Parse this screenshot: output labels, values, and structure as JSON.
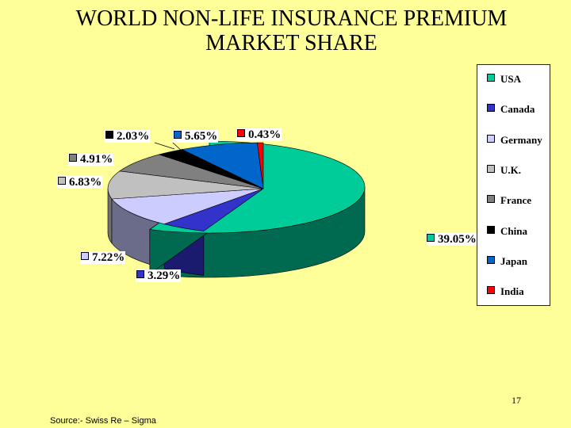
{
  "title_lines": [
    "WORLD NON-LIFE INSURANCE PREMIUM",
    "MARKET SHARE"
  ],
  "chart_data": {
    "type": "pie",
    "style": "3d exploded",
    "legend_position": "right",
    "slices": [
      {
        "name": "USA",
        "value": 39.05,
        "label": "39.05%",
        "color": "#00cc99",
        "side_color": "#006a50"
      },
      {
        "name": "Canada",
        "value": 3.29,
        "label": "3.29%",
        "color": "#3333cc",
        "side_color": "#1a1a6e"
      },
      {
        "name": "Germany",
        "value": 7.22,
        "label": "7.22%",
        "color": "#ccccff",
        "side_color": "#6b6b8a"
      },
      {
        "name": "U.K.",
        "value": 6.83,
        "label": "6.83%",
        "color": "#c0c0c0",
        "side_color": "#707070"
      },
      {
        "name": "France",
        "value": 4.91,
        "label": "4.91%",
        "color": "#808080",
        "side_color": "#454545"
      },
      {
        "name": "China",
        "value": 2.03,
        "label": "2.03%",
        "color": "#000000",
        "side_color": "#000000"
      },
      {
        "name": "Japan",
        "value": 5.65,
        "label": "5.65%",
        "color": "#0066cc",
        "side_color": "#00336b"
      },
      {
        "name": "India",
        "value": 0.43,
        "label": "0.43%",
        "color": "#ff0000",
        "side_color": "#880000"
      }
    ]
  },
  "source": "Source:- Swiss Re – Sigma",
  "page_number": "17"
}
